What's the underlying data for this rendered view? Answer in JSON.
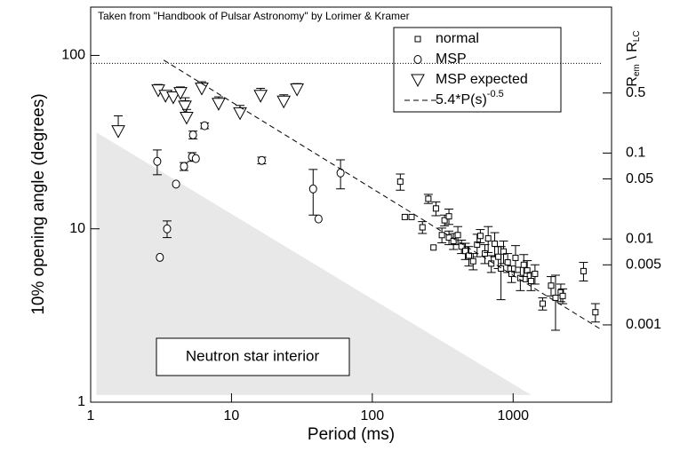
{
  "chart_data": {
    "type": "scatter",
    "title": "Taken from \"Handbook of Pulsar Astronomy\" by Lorimer & Kramer",
    "xlabel": "Period (ms)",
    "ylabel": "10% opening angle (degrees)",
    "y2label": [
      "R",
      "em",
      " \\ R",
      "LC"
    ],
    "xscale": "log",
    "yscale": "log",
    "y2scale": "log",
    "xlim": [
      1,
      5000
    ],
    "ylim": [
      1,
      190
    ],
    "y2lim": [
      0.000126,
      5
    ],
    "xticks": [
      1,
      10,
      100,
      1000
    ],
    "yticks": [
      1,
      10,
      100
    ],
    "y2ticks": [
      0.5,
      0.1,
      0.05,
      0.01,
      0.005,
      0.001
    ],
    "reference_line": 90,
    "legend": "upper right",
    "region": {
      "label": "Neutron star interior",
      "color": "#e8e8e8",
      "x": [
        1.1,
        1.1,
        1340
      ],
      "values": [
        36,
        1.1,
        1.1
      ]
    },
    "series": [
      {
        "name": "normal",
        "marker": "square",
        "color": "#000000",
        "x": [
          158,
          170,
          190,
          227,
          250,
          272,
          283,
          312,
          326,
          350,
          350,
          377,
          405,
          430,
          458,
          485,
          520,
          555,
          585,
          630,
          665,
          700,
          740,
          785,
          820,
          855,
          915,
          975,
          1040,
          1125,
          1190,
          1260,
          1340,
          1430,
          1620,
          1860,
          2000,
          2180,
          2250,
          3160,
          3840
        ],
        "values": [
          18.7,
          11.7,
          11.7,
          10.2,
          14.9,
          7.8,
          13.1,
          9.2,
          11.2,
          11.8,
          8.9,
          8.5,
          9.2,
          7.9,
          7.45,
          7.0,
          6.5,
          8.1,
          9.1,
          7.2,
          8.8,
          6.3,
          8.2,
          6.9,
          5.9,
          7.4,
          6.4,
          5.5,
          6.8,
          5.2,
          6.2,
          5.75,
          5.0,
          5.5,
          3.7,
          4.7,
          4.0,
          4.3,
          4.1,
          5.7,
          3.3
        ],
        "errors": [
          2,
          null,
          null,
          0.8,
          0.9,
          null,
          1.2,
          0.9,
          0.8,
          1.2,
          0.8,
          0.9,
          1.1,
          0.7,
          0.8,
          0.9,
          0.7,
          1.2,
          0.8,
          0.9,
          1.5,
          0.7,
          1.3,
          1.0,
          2,
          1.1,
          0.8,
          0.6,
          1.2,
          0.8,
          0.9,
          0.8,
          0.6,
          0.7,
          0.3,
          0.6,
          1.4,
          0.5,
          0.4,
          0.7,
          0.4
        ]
      },
      {
        "name": "MSP",
        "marker": "circle",
        "color": "#000000",
        "x": [
          2.97,
          3.1,
          3.49,
          4.04,
          4.6,
          4.7,
          5.25,
          5.33,
          5.58,
          6.44,
          16.4,
          38,
          41.5,
          59.5
        ],
        "values": [
          24.5,
          6.84,
          10,
          18.1,
          22.9,
          52,
          26,
          34.8,
          25.4,
          39.3,
          24.8,
          17,
          11.4,
          21
        ],
        "errors": [
          4,
          null,
          1.1,
          null,
          1.2,
          5,
          1.5,
          1.8,
          null,
          1.5,
          1.1,
          5,
          null,
          4
        ]
      },
      {
        "name": "MSP expected",
        "marker": "triangle-down",
        "color": "#000000",
        "error_direction": "up",
        "x": [
          1.57,
          3.02,
          3.4,
          3.86,
          4.34,
          4.67,
          4.8,
          6.15,
          8.1,
          11.5,
          16.1,
          23.5,
          29.2
        ],
        "values": [
          36.6,
          63,
          58.6,
          57.4,
          60.8,
          50.8,
          43.8,
          64.5,
          52.7,
          46.5,
          58.6,
          54.3,
          63.8
        ],
        "errors": [
          8.2,
          5,
          4,
          4,
          5,
          4,
          5,
          6,
          5,
          5,
          6,
          5,
          5
        ]
      },
      {
        "name": "5.4*P(s)",
        "name_superscript": "-0.5",
        "marker": "dashed-line",
        "color": "#000000",
        "x": [
          3.3,
          4300
        ],
        "values": [
          94.0,
          2.6
        ]
      }
    ]
  }
}
